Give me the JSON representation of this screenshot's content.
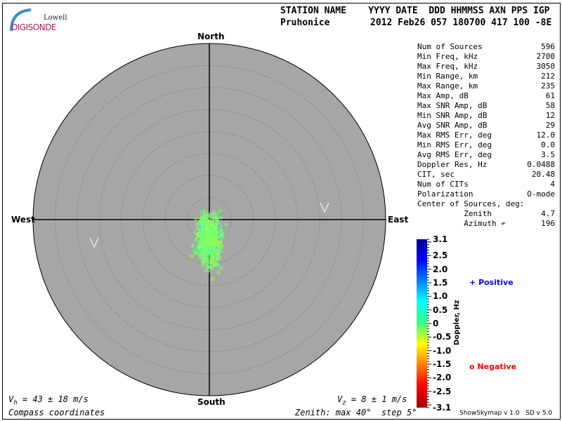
{
  "logo": {
    "line1": "Lowell",
    "line2": "DIGISONDE"
  },
  "header": {
    "labels_row": "STATION NAME    YYYY DATE  DDD HHMMSS AXN PPS IGP",
    "station": "Pruhonice",
    "values_row": "2012 Feb26 057 180700 417 100 -8E"
  },
  "stats": [
    {
      "label": "Num of Sources",
      "value": "596"
    },
    {
      "label": "Min Freq, kHz",
      "value": "2700"
    },
    {
      "label": "Max Freq, kHz",
      "value": "3050"
    },
    {
      "label": "Min Range, km",
      "value": "212"
    },
    {
      "label": "Max Range, km",
      "value": "235"
    },
    {
      "label": "Max Amp, dB",
      "value": "61"
    },
    {
      "label": "Max SNR Amp, dB",
      "value": "58"
    },
    {
      "label": "Min SNR Amp, dB",
      "value": "12"
    },
    {
      "label": "Avg SNR Amp, dB",
      "value": "29"
    },
    {
      "label": "Max RMS Err, deg",
      "value": "12.0"
    },
    {
      "label": "Min RMS Err, deg",
      "value": "0.0"
    },
    {
      "label": "Avg RMS Err, deg",
      "value": "3.5"
    },
    {
      "label": "Doppler Res, Hz",
      "value": "0.0488"
    },
    {
      "label": "CIT, sec",
      "value": "20.48"
    },
    {
      "label": "Num of CITs",
      "value": "4"
    },
    {
      "label": "Polarization",
      "value": "O-mode"
    },
    {
      "label": "Center of Sources, deg:",
      "value": ""
    },
    {
      "label": "          Zenith",
      "value": "4.7"
    },
    {
      "label": "          Azimuth ↶",
      "value": "196"
    }
  ],
  "chart_data": {
    "type": "scatter",
    "projection": "polar skymap",
    "directions": {
      "north": "North",
      "south": "South",
      "east": "East",
      "west": "West"
    },
    "zenith_max_deg": 40,
    "zenith_step_deg": 5,
    "background_color": "#a6a6a6",
    "center_of_sources": {
      "zenith_deg": 4.7,
      "azimuth_deg": 196
    },
    "num_sources": 596,
    "colorbar": {
      "label": "Doppler, Hz",
      "range": [
        -3.1,
        3.1
      ],
      "colormap": "jet",
      "ticks": [
        "3.1",
        "2.5",
        "2.0",
        "1.5",
        "1.0",
        "0.5",
        "0",
        "-0.5",
        "-1.0",
        "-1.5",
        "-2.0",
        "-2.5",
        "-3.1"
      ]
    },
    "legend": {
      "positive": "Positive",
      "negative": "Negative",
      "positive_marker": "+",
      "negative_marker": "o",
      "positive_color": "#0000ff",
      "negative_color": "#ff0000"
    }
  },
  "footer": {
    "vh": "43 ± 18 m/s",
    "vz": "8 ± 1 m/s",
    "vh_label": "V",
    "vh_sub": "h",
    "vz_label": "V",
    "vz_sub": "z",
    "coords": "Compass coordinates",
    "zenith": "Zenith: max 40°  step 5°",
    "version": "ShowSkymap v 1.0   SD v 5.0"
  }
}
